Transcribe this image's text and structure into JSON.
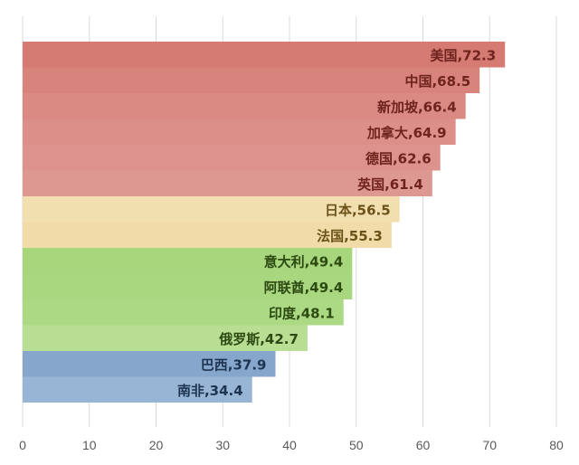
{
  "chart_data": {
    "type": "bar",
    "orientation": "horizontal",
    "categories": [
      "美国",
      "中国",
      "新加坡",
      "加拿大",
      "德国",
      "英国",
      "日本",
      "法国",
      "意大利",
      "阿联酋",
      "印度",
      "俄罗斯",
      "巴西",
      "南非"
    ],
    "values": [
      72.3,
      68.5,
      66.4,
      64.9,
      62.6,
      61.4,
      56.5,
      55.3,
      49.4,
      49.4,
      48.1,
      42.7,
      37.9,
      34.4
    ],
    "data_labels": [
      "美国,72.3",
      "中国,68.5",
      "新加坡,66.4",
      "加拿大,64.9",
      "德国,62.6",
      "英国,61.4",
      "日本,56.5",
      "法国,55.3",
      "意大利,49.4",
      "阿联酋,49.4",
      "印度,48.1",
      "俄罗斯,42.7",
      "巴西,37.9",
      "南非,34.4"
    ],
    "bar_colors": [
      "#d57b73",
      "#d8837b",
      "#da8a83",
      "#db8f88",
      "#dc938d",
      "#de9892",
      "#f2dfaf",
      "#f1dba8",
      "#a7d67d",
      "#a9d780",
      "#acd984",
      "#b7de93",
      "#87a6cc",
      "#98b5d5"
    ],
    "label_colors": [
      "#6e231d",
      "#6e231d",
      "#6e231d",
      "#6e231d",
      "#6e231d",
      "#6e231d",
      "#6b5219",
      "#6b5219",
      "#2c4a12",
      "#2c4a12",
      "#2c4a12",
      "#2c4a12",
      "#1e3552",
      "#1e3552"
    ],
    "xlim": [
      0,
      80
    ],
    "xticks": [
      "0",
      "10",
      "20",
      "30",
      "40",
      "50",
      "60",
      "70",
      "80"
    ],
    "grid": true,
    "title": "",
    "xlabel": "",
    "ylabel": ""
  }
}
